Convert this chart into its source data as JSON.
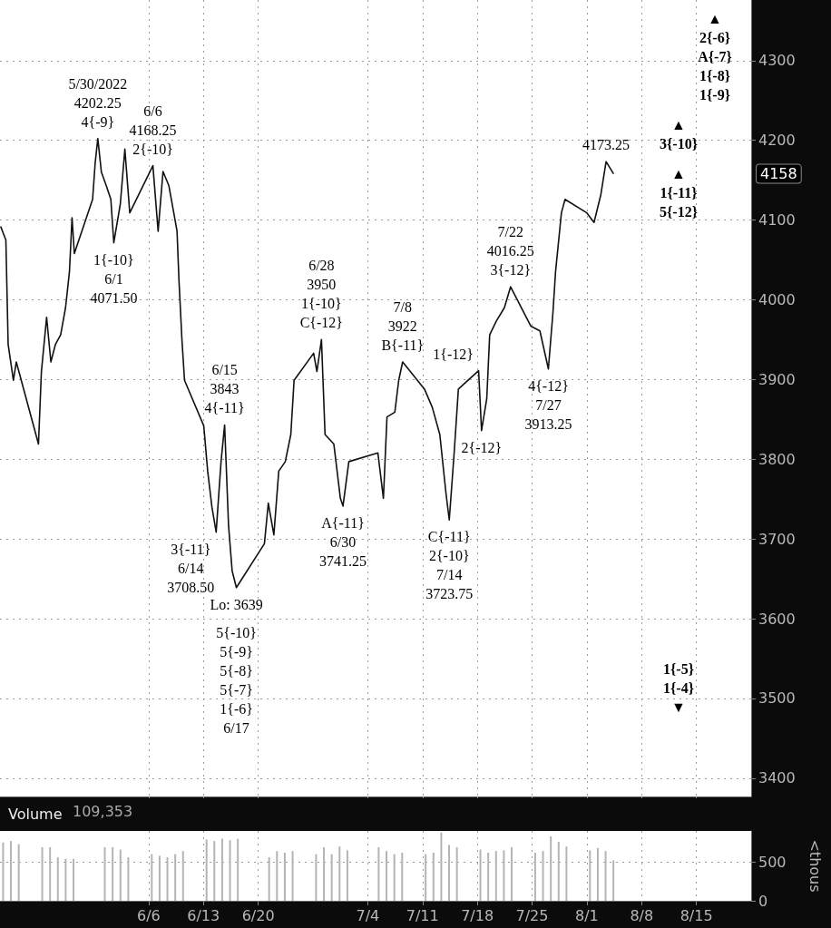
{
  "chart_data": [
    {
      "type": "line",
      "color": "#111111",
      "marker": "none",
      "grid": true,
      "tick_labels": "y",
      "x": [
        "2022-05-18T02:00",
        "2022-05-18T18:00",
        "2022-05-19T01:00",
        "2022-05-19T17:00",
        "2022-05-20T02:00",
        "2022-05-22T22:00",
        "2022-05-23T07:00",
        "2022-05-23T23:00",
        "2022-05-24T12:00",
        "2022-05-25T02:00",
        "2022-05-25T18:00",
        "2022-05-26T09:00",
        "2022-05-26T21:00",
        "2022-05-27T05:00",
        "2022-05-27T12:00",
        "2022-05-29T20:00",
        "2022-05-30T04:00",
        "2022-05-30T12:00",
        "2022-05-30T23:00",
        "2022-05-31T14:00",
        "2022-06-01T04:00",
        "2022-06-01T13:00",
        "2022-06-02T09:00",
        "2022-06-02T23:00",
        "2022-06-03T14:00",
        "2022-06-06T13:00",
        "2022-06-07T05:00",
        "2022-06-07T20:00",
        "2022-06-08T14:00",
        "2022-06-09T05:00",
        "2022-06-09T15:00",
        "2022-06-09T21:00",
        "2022-06-10T06:00",
        "2022-06-10T14:00",
        "2022-06-13T01:00",
        "2022-06-13T13:00",
        "2022-06-14T02:00",
        "2022-06-14T15:00",
        "2022-06-15T06:00",
        "2022-06-15T17:00",
        "2022-06-16T05:00",
        "2022-06-16T16:00",
        "2022-06-17T05:00",
        "2022-06-20T19:00",
        "2022-06-21T07:00",
        "2022-06-22T00:00",
        "2022-06-22T15:00",
        "2022-06-23T11:00",
        "2022-06-24T04:00",
        "2022-06-24T14:00",
        "2022-06-27T02:00",
        "2022-06-27T12:00",
        "2022-06-28T02:00",
        "2022-06-28T13:00",
        "2022-06-29T16:00",
        "2022-06-30T12:00",
        "2022-06-30T20:00",
        "2022-07-01T14:00",
        "2022-07-05T07:00",
        "2022-07-06T00:00",
        "2022-07-06T11:00",
        "2022-07-07T11:00",
        "2022-07-07T23:00",
        "2022-07-08T11:00",
        "2022-07-11T06:00",
        "2022-07-12T06:00",
        "2022-07-13T05:00",
        "2022-07-14T00:00",
        "2022-07-14T10:00",
        "2022-07-15T01:00",
        "2022-07-15T14:00",
        "2022-07-18T04:00",
        "2022-07-18T13:00",
        "2022-07-19T05:00",
        "2022-07-19T14:00",
        "2022-07-20T10:00",
        "2022-07-21T11:00",
        "2022-07-22T06:00",
        "2022-07-24T20:00",
        "2022-07-26T00:00",
        "2022-07-27T02:00",
        "2022-07-27T16:00",
        "2022-07-28T00:00",
        "2022-07-28T18:00",
        "2022-07-29T05:00",
        "2022-08-01T00:00",
        "2022-08-01T22:00",
        "2022-08-02T19:00",
        "2022-08-03T11:00",
        "2022-08-04T10:00"
      ],
      "values": [
        4092,
        4075,
        3944,
        3899,
        3922,
        3819,
        3910,
        3978,
        3922,
        3944,
        3956,
        3990,
        4035,
        4103,
        4058,
        4126,
        4172,
        4202.25,
        4160,
        4143,
        4126,
        4071.5,
        4120,
        4189,
        4109,
        4168.25,
        4086,
        4161,
        4143,
        4109,
        4086,
        4024,
        3950,
        3899,
        3842,
        3785,
        3740,
        3708.5,
        3797,
        3843,
        3717,
        3660,
        3639,
        3694,
        3745,
        3705,
        3785,
        3797,
        3831,
        3899,
        3933,
        3910,
        3950,
        3831,
        3819,
        3751,
        3741.25,
        3797,
        3808,
        3751,
        3853,
        3859,
        3899,
        3922,
        3888,
        3865,
        3831,
        3757,
        3723.75,
        3808,
        3888,
        3911,
        3836,
        3876,
        3956,
        3973,
        3990,
        4016.25,
        3967,
        3961,
        3913.25,
        3984,
        4035,
        4109,
        4126,
        4109,
        4097,
        4132,
        4173.25,
        4158
      ],
      "xlim": [
        "2022-05-18T00:00",
        "2022-08-22T00:00"
      ],
      "xticks": [
        {
          "value": "2022-06-06",
          "label": null
        },
        {
          "value": "2022-06-13",
          "label": null
        },
        {
          "value": "2022-06-20",
          "label": null
        },
        {
          "value": "2022-07-04",
          "label": null
        },
        {
          "value": "2022-07-11",
          "label": null
        },
        {
          "value": "2022-07-18",
          "label": null
        },
        {
          "value": "2022-07-25",
          "label": null
        },
        {
          "value": "2022-08-01",
          "label": null
        },
        {
          "value": "2022-08-08",
          "label": null
        },
        {
          "value": "2022-08-15",
          "label": null
        }
      ],
      "ylim": [
        3377,
        4376
      ],
      "yticks": [
        3400,
        3500,
        3600,
        3700,
        3800,
        3900,
        4000,
        4100,
        4200,
        4300
      ],
      "annotations": [
        {
          "text": "5/30/2022\n4202.25\n4{-9}",
          "x": "2022-05-30T12:00",
          "y": 4202.25
        },
        {
          "text": "6/6\n4168.25\n2{-10}",
          "x": "2022-06-06T13:00",
          "y": 4168.25
        },
        {
          "text": "1{-10}\n6/1\n4071.50",
          "x": "2022-06-01T13:00",
          "y": 4071.5
        },
        {
          "text": "6/15\n3843\n4{-11}",
          "x": "2022-06-15T17:00",
          "y": 3843
        },
        {
          "text": "3{-11}\n6/14\n3708.50",
          "x": "2022-06-14T15:00",
          "y": 3708.5
        },
        {
          "text": "Lo: 3639",
          "x": "2022-06-17T05:00",
          "y": 3639
        },
        {
          "text": "5{-10}\n5{-9}\n5{-8}\n5{-7}\n1{-6}\n6/17",
          "x": "2022-06-17T05:00",
          "y": 3639
        },
        {
          "text": "6/28\n3950\n1{-10}\nC{-12}",
          "x": "2022-06-28T02:00",
          "y": 3950
        },
        {
          "text": "A{-11}\n6/30\n3741.25",
          "x": "2022-06-30T20:00",
          "y": 3741.25
        },
        {
          "text": "7/8\n3922\nB{-11}",
          "x": "2022-07-08T11:00",
          "y": 3922
        },
        {
          "text": "1{-12}",
          "x": "2022-07-18T04:00",
          "y": 3911
        },
        {
          "text": "C{-11}\n2{-10}\n7/14\n3723.75",
          "x": "2022-07-14T10:00",
          "y": 3723.75
        },
        {
          "text": "2{-12}",
          "x": "2022-07-18T13:00",
          "y": 3836
        },
        {
          "text": "7/22\n4016.25\n3{-12}",
          "x": "2022-07-22T06:00",
          "y": 4016.25
        },
        {
          "text": "4{-12}\n7/27\n3913.25",
          "x": "2022-07-27T02:00",
          "y": 3913.25
        },
        {
          "text": "4173.25",
          "x": "2022-08-03T11:00",
          "y": 4173.25
        },
        "4158",
        "▲\n2{-6}\nA{-7}\n1{-8}\n1{-9}",
        "▲\n3{-10}",
        "▲\n1{-11}\n5{-12}",
        "1{-5}\n1{-4}\n▼"
      ]
    },
    {
      "type": "bar",
      "title": "Volume",
      "ylabel": "<thous",
      "color": "#b4b4b4",
      "grid": true,
      "x": [
        "2022-05-18T09:30",
        "2022-05-19T09:30",
        "2022-05-20T09:30",
        "2022-05-23T09:30",
        "2022-05-24T09:30",
        "2022-05-25T09:30",
        "2022-05-26T09:30",
        "2022-05-27T09:30",
        "2022-05-31T09:30",
        "2022-06-01T09:30",
        "2022-06-02T09:30",
        "2022-06-03T09:30",
        "2022-06-06T09:30",
        "2022-06-07T09:30",
        "2022-06-08T09:30",
        "2022-06-09T09:30",
        "2022-06-10T09:30",
        "2022-06-13T09:30",
        "2022-06-14T09:30",
        "2022-06-15T09:30",
        "2022-06-16T09:30",
        "2022-06-17T09:30",
        "2022-06-21T09:30",
        "2022-06-22T09:30",
        "2022-06-23T09:30",
        "2022-06-24T09:30",
        "2022-06-27T09:30",
        "2022-06-28T09:30",
        "2022-06-29T09:30",
        "2022-06-30T09:30",
        "2022-07-01T09:30",
        "2022-07-05T09:30",
        "2022-07-06T09:30",
        "2022-07-07T09:30",
        "2022-07-08T09:30",
        "2022-07-11T09:30",
        "2022-07-12T09:30",
        "2022-07-13T09:30",
        "2022-07-14T09:30",
        "2022-07-15T09:30",
        "2022-07-18T09:30",
        "2022-07-19T09:30",
        "2022-07-20T09:30",
        "2022-07-21T09:30",
        "2022-07-22T09:30",
        "2022-07-25T09:30",
        "2022-07-26T09:30",
        "2022-07-27T09:30",
        "2022-07-28T09:30",
        "2022-07-29T09:30",
        "2022-08-01T09:30",
        "2022-08-02T09:30",
        "2022-08-03T09:30",
        "2022-08-04T09:30"
      ],
      "values": [
        750,
        770,
        730,
        690,
        690,
        560,
        540,
        540,
        690,
        690,
        660,
        560,
        600,
        580,
        560,
        600,
        640,
        790,
        770,
        800,
        780,
        800,
        560,
        640,
        620,
        640,
        600,
        690,
        600,
        700,
        650,
        690,
        640,
        600,
        620,
        600,
        620,
        880,
        720,
        690,
        660,
        620,
        640,
        650,
        690,
        620,
        640,
        830,
        760,
        700,
        650,
        680,
        640,
        520
      ],
      "xlim": [
        "2022-05-18T00:00",
        "2022-08-22T00:00"
      ],
      "xticks": [
        {
          "value": "2022-06-06",
          "label": "6/6"
        },
        {
          "value": "2022-06-13",
          "label": "6/13"
        },
        {
          "value": "2022-06-20",
          "label": "6/20"
        },
        {
          "value": "2022-07-04",
          "label": "7/4"
        },
        {
          "value": "2022-07-11",
          "label": "7/11"
        },
        {
          "value": "2022-07-18",
          "label": "7/18"
        },
        {
          "value": "2022-07-25",
          "label": "7/25"
        },
        {
          "value": "2022-08-01",
          "label": "8/1"
        },
        {
          "value": "2022-08-08",
          "label": "8/8"
        },
        {
          "value": "2022-08-15",
          "label": "8/15"
        }
      ],
      "ylim": [
        0,
        900
      ],
      "yticks": [
        0,
        500
      ],
      "annotations": [
        "109,353"
      ]
    }
  ]
}
